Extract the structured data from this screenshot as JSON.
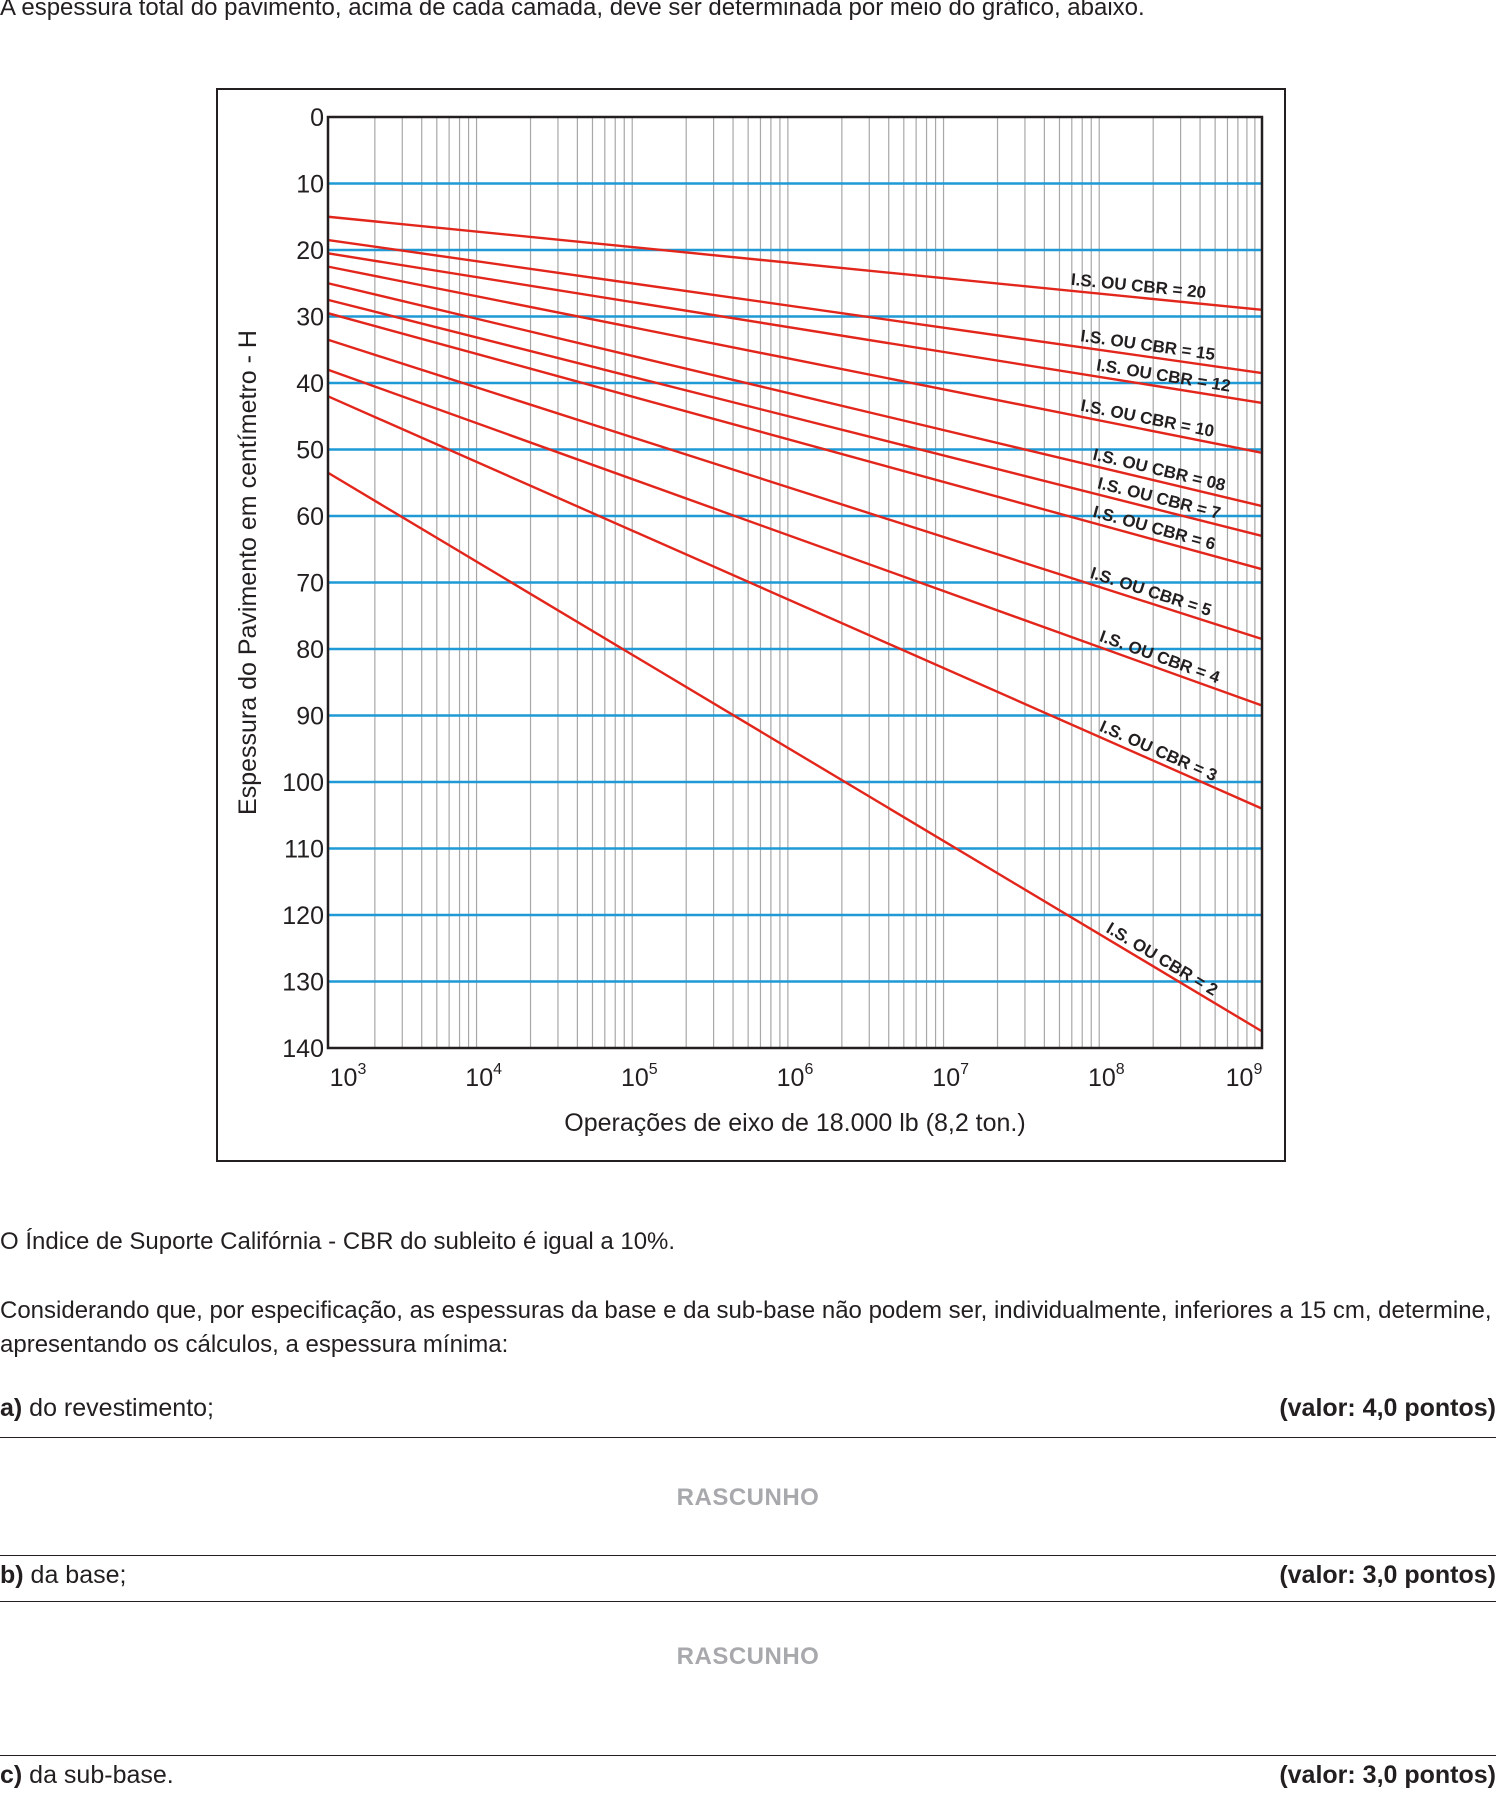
{
  "intro_text": "A espessura total do pavimento, acima de cada camada, deve ser determinada por meio do gráfico, abaixo.",
  "chart_data": {
    "type": "line",
    "xlabel": "Operações de eixo de 18.000 lb (8,2 ton.)",
    "ylabel": "Espessura do Pavimento em centímetro - H",
    "x_scale": "log",
    "xlim": [
      1000,
      1000000000
    ],
    "ylim": [
      0,
      140
    ],
    "y_inverted": true,
    "x_ticks": [
      {
        "base": "10",
        "exp": "3"
      },
      {
        "base": "10",
        "exp": "4"
      },
      {
        "base": "10",
        "exp": "5"
      },
      {
        "base": "10",
        "exp": "6"
      },
      {
        "base": "10",
        "exp": "7"
      },
      {
        "base": "10",
        "exp": "8"
      },
      {
        "base": "10",
        "exp": "9"
      }
    ],
    "y_ticks": [
      "0",
      "10",
      "20",
      "30",
      "40",
      "50",
      "60",
      "70",
      "80",
      "90",
      "100",
      "110",
      "120",
      "130",
      "140"
    ],
    "grid": true,
    "colors": {
      "curves": "#e3261c",
      "hgrid": "#1f9ad6",
      "vgrid": "#a8a8a8",
      "frame": "#231f20"
    },
    "series": [
      {
        "name": "I.S. OU CBR = 20",
        "x": [
          1000,
          1000000000
        ],
        "y": [
          15,
          29
        ]
      },
      {
        "name": "I.S. OU CBR = 15",
        "x": [
          1000,
          1000000000
        ],
        "y": [
          18.5,
          38.5
        ]
      },
      {
        "name": "I.S. OU CBR = 12",
        "x": [
          1000,
          1000000000
        ],
        "y": [
          20.5,
          43
        ]
      },
      {
        "name": "I.S. OU CBR = 10",
        "x": [
          1000,
          1000000000
        ],
        "y": [
          22.5,
          50.5
        ]
      },
      {
        "name": "I.S. OU CBR = 08",
        "x": [
          1000,
          1000000000
        ],
        "y": [
          25,
          58.5
        ]
      },
      {
        "name": "I.S. OU CBR = 7",
        "x": [
          1000,
          1000000000
        ],
        "y": [
          27.5,
          63
        ]
      },
      {
        "name": "I.S. OU CBR = 6",
        "x": [
          1000,
          1000000000
        ],
        "y": [
          29.5,
          68
        ]
      },
      {
        "name": "I.S. OU CBR = 5",
        "x": [
          1000,
          1000000000
        ],
        "y": [
          33.5,
          78.5
        ]
      },
      {
        "name": "I.S. OU CBR = 4",
        "x": [
          1000,
          1000000000
        ],
        "y": [
          38,
          88.5
        ]
      },
      {
        "name": "I.S. OU CBR = 3",
        "x": [
          1000,
          1000000000
        ],
        "y": [
          42,
          104
        ]
      },
      {
        "name": "I.S. OU CBR = 2",
        "x": [
          1000,
          1000000000
        ],
        "y": [
          53.5,
          137.5
        ]
      }
    ]
  },
  "cbr_text": "O Índice de Suporte Califórnia - CBR do subleito é igual a 10%.",
  "consider_text": "Considerando que, por especificação, as espessuras da base e da sub-base não podem ser, individualmente, inferiores a 15 cm, determine, apresentando os cálculos, a espessura mínima:",
  "questions": [
    {
      "letter": "a)",
      "text": " do revestimento;",
      "value": "(valor: 4,0 pontos)"
    },
    {
      "letter": "b)",
      "text": " da base;",
      "value": "(valor: 3,0 pontos)"
    },
    {
      "letter": "c)",
      "text": " da sub-base.",
      "value": "(valor: 3,0 pontos)"
    }
  ],
  "rascunho_label": "RASCUNHO"
}
